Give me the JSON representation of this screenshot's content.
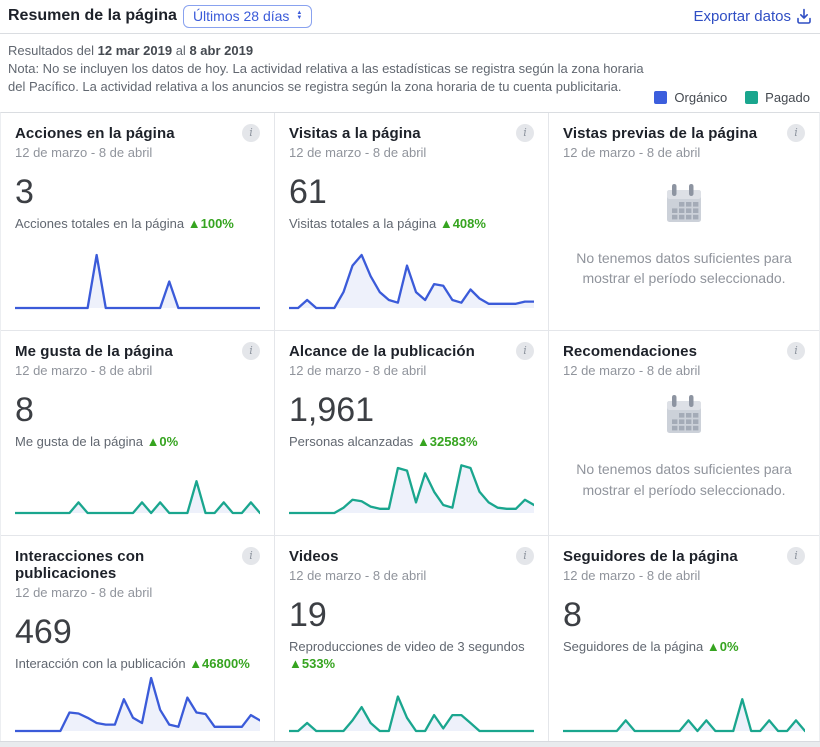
{
  "header": {
    "title": "Resumen de la página",
    "range_selector": "Últimos 28 días",
    "export_label": "Exportar datos"
  },
  "meta": {
    "results_prefix": "Resultados del",
    "date_from": "12 mar 2019",
    "results_mid": "al",
    "date_to": "8 abr 2019",
    "note": "Nota: No se incluyen los datos de hoy. La actividad relativa a las estadísticas se registra según la zona horaria del Pacífico. La actividad relativa a los anuncios se registra según la zona horaria de tu cuenta publicitaria.",
    "legend": [
      {
        "label": "Orgánico",
        "color": "#3c5edd"
      },
      {
        "label": "Pagado",
        "color": "#1aa68e"
      }
    ]
  },
  "icons": {
    "info": "i",
    "sort_up": "▲",
    "sort_down": "▼"
  },
  "no_data_text": "No tenemos datos suficientes para mostrar el período seleccionado.",
  "colors": {
    "organic_line": "#3b5bd9",
    "paid_line": "#1aa68e",
    "spark_fill": "#eef1fb",
    "delta_green": "#36a420"
  },
  "cards": [
    {
      "title": "Acciones en la página",
      "date_range": "12 de marzo - 8 de abril",
      "value": "3",
      "metric_label": "Acciones totales en la página",
      "delta": "▲100%",
      "spark": {
        "color": "#3b5bd9",
        "fill": "#eef1fb",
        "values": [
          0,
          0,
          0,
          0,
          0,
          0,
          0,
          0,
          0,
          10,
          0,
          0,
          0,
          0,
          0,
          0,
          0,
          5,
          0,
          0,
          0,
          0,
          0,
          0,
          0,
          0,
          0,
          0
        ]
      }
    },
    {
      "title": "Visitas a la página",
      "date_range": "12 de marzo - 8 de abril",
      "value": "61",
      "metric_label": "Visitas totales a la página",
      "delta": "▲408%",
      "spark": {
        "color": "#3b5bd9",
        "fill": "#eef1fb",
        "values": [
          0,
          0,
          1.5,
          0,
          0,
          0,
          3,
          8,
          10,
          6,
          3,
          1.5,
          1,
          8,
          3,
          1.5,
          4.5,
          4.2,
          1.5,
          1,
          3.5,
          1.8,
          0.8,
          0.8,
          0.8,
          0.8,
          1.2,
          1.2
        ]
      }
    },
    {
      "title": "Vistas previas de la página",
      "date_range": "12 de marzo - 8 de abril",
      "no_data": true
    },
    {
      "title": "Me gusta de la página",
      "date_range": "12 de marzo - 8 de abril",
      "value": "8",
      "metric_label": "Me gusta de la página",
      "delta": "▲0%",
      "spark": {
        "color": "#1aa68e",
        "fill": "#eef1fb",
        "values": [
          0,
          0,
          0,
          0,
          0,
          0,
          0,
          2,
          0,
          0,
          0,
          0,
          0,
          0,
          2,
          0,
          2,
          0,
          0,
          0,
          6,
          0,
          0,
          2,
          0,
          0,
          2,
          0
        ]
      }
    },
    {
      "title": "Alcance de la publicación",
      "date_range": "12 de marzo - 8 de abril",
      "value": "1,961",
      "metric_label": "Personas alcanzadas",
      "delta": "▲32583%",
      "spark": {
        "color": "#1aa68e",
        "fill": "#eef1fb",
        "values": [
          0,
          0,
          0,
          0,
          0,
          0,
          1,
          2.5,
          2.2,
          1.2,
          0.8,
          0.8,
          8.5,
          8,
          2,
          7.5,
          4,
          1.5,
          1,
          9,
          8.5,
          4,
          2,
          1,
          0.8,
          0.8,
          2.5,
          1.5
        ]
      }
    },
    {
      "title": "Recomendaciones",
      "date_range": "12 de marzo - 8 de abril",
      "no_data": true
    },
    {
      "title": "Interacciones con publicaciones",
      "date_range": "12 de marzo - 8 de abril",
      "value": "469",
      "metric_label": "Interacción con la publicación",
      "delta": "▲46800%",
      "spark": {
        "color": "#3b5bd9",
        "fill": "#eef1fb",
        "values": [
          0,
          0,
          0,
          0,
          0,
          0,
          3.5,
          3.3,
          2.5,
          1.5,
          1.2,
          1.2,
          6,
          2.5,
          1.5,
          10,
          4,
          1.2,
          0.8,
          6.3,
          3.5,
          3.2,
          0.8,
          0.8,
          0.8,
          0.8,
          3,
          2
        ]
      }
    },
    {
      "title": "Videos",
      "date_range": "12 de marzo - 8 de abril",
      "value": "19",
      "metric_label": "Reproducciones de video de 3 segundos",
      "delta": "▲533%",
      "spark": {
        "color": "#1aa68e",
        "fill": "#eef1fb",
        "values": [
          0,
          0,
          1.5,
          0,
          0,
          0,
          0,
          2,
          4.5,
          1.5,
          0,
          0,
          6.5,
          2.5,
          0,
          0,
          3,
          0.5,
          3,
          3,
          1.5,
          0,
          0,
          0,
          0,
          0,
          0,
          0
        ]
      }
    },
    {
      "title": "Seguidores de la página",
      "date_range": "12 de marzo - 8 de abril",
      "value": "8",
      "metric_label": "Seguidores de la página",
      "delta": "▲0%",
      "spark": {
        "color": "#1aa68e",
        "fill": "#eef1fb",
        "values": [
          0,
          0,
          0,
          0,
          0,
          0,
          0,
          2,
          0,
          0,
          0,
          0,
          0,
          0,
          2,
          0,
          2,
          0,
          0,
          0,
          6,
          0,
          0,
          2,
          0,
          0,
          2,
          0
        ]
      }
    }
  ]
}
